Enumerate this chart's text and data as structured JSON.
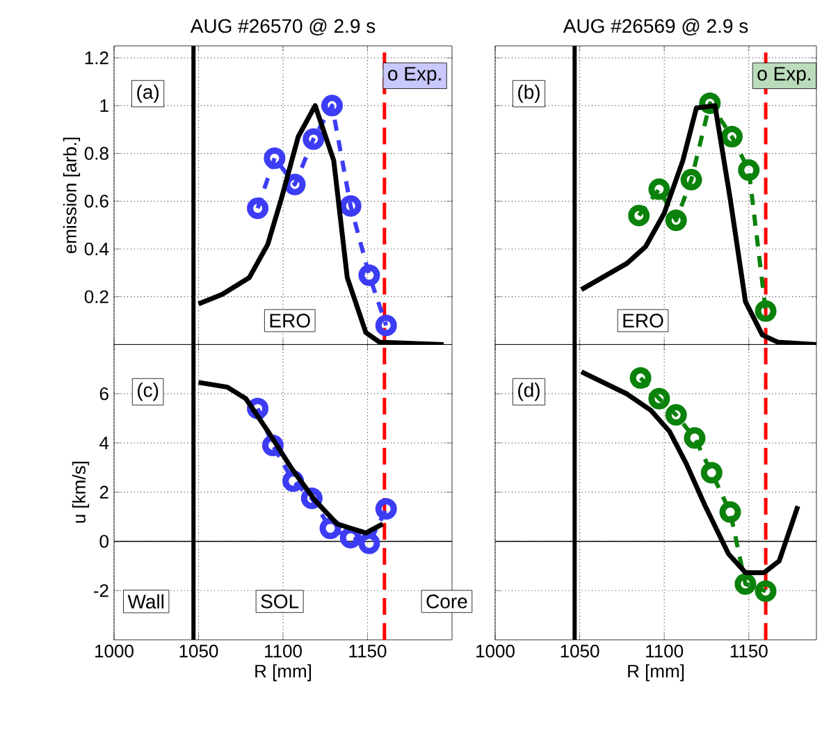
{
  "chart_data": [
    {
      "type": "line",
      "title": "AUG #26570 @ 2.9 s",
      "ylabel": "emission [arb.]",
      "xlim": [
        1000,
        1200
      ],
      "ylim": [
        0,
        1.25
      ],
      "xticks": [
        1000,
        1050,
        1100,
        1150
      ],
      "yticks": [
        0.2,
        0.4,
        0.6,
        0.8,
        1,
        1.2
      ],
      "grid": true,
      "tick_labels": "y",
      "annotations": [
        "(a)",
        "ERO",
        "o Exp."
      ],
      "ref_lines": [
        {
          "axis": "x",
          "value": 1047,
          "color": "#000000",
          "line_style": "solid"
        },
        {
          "axis": "x",
          "value": 1160,
          "color": "#ff0000",
          "line_style": "dashed"
        }
      ],
      "series": [
        {
          "color": "#3c3cf5",
          "marker": "circle",
          "line_style": "dashed",
          "x": [
            1085,
            1095,
            1107,
            1118,
            1129,
            1140,
            1151,
            1161
          ],
          "values": [
            0.57,
            0.78,
            0.67,
            0.86,
            1.0,
            0.58,
            0.29,
            0.08
          ]
        },
        {
          "color": "#000000",
          "marker": "none",
          "line_style": "solid",
          "x": [
            1050,
            1064,
            1080,
            1091,
            1099,
            1109,
            1119,
            1130,
            1138,
            1149,
            1157,
            1195
          ],
          "values": [
            0.17,
            0.21,
            0.28,
            0.42,
            0.61,
            0.87,
            1.0,
            0.77,
            0.28,
            0.05,
            0.01,
            0
          ]
        }
      ]
    },
    {
      "type": "line",
      "title": "AUG #26569 @ 2.9 s",
      "xlim": [
        1000,
        1190
      ],
      "ylim": [
        0,
        1.25
      ],
      "xticks": [
        1000,
        1050,
        1100,
        1150
      ],
      "yticks": [
        0.2,
        0.4,
        0.6,
        0.8,
        1,
        1.2
      ],
      "grid": true,
      "tick_labels": false,
      "annotations": [
        "(b)",
        "ERO",
        "o Exp."
      ],
      "ref_lines": [
        {
          "axis": "x",
          "value": 1047,
          "color": "#000000",
          "line_style": "solid"
        },
        {
          "axis": "x",
          "value": 1160,
          "color": "#ff0000",
          "line_style": "dashed"
        }
      ],
      "series": [
        {
          "color": "#0b820b",
          "marker": "circle",
          "line_style": "dashed",
          "x": [
            1085,
            1097,
            1107,
            1116,
            1127,
            1140,
            1150,
            1160
          ],
          "values": [
            0.54,
            0.65,
            0.52,
            0.69,
            1.01,
            0.87,
            0.73,
            0.14
          ]
        },
        {
          "color": "#000000",
          "marker": "none",
          "line_style": "solid",
          "x": [
            1051,
            1078,
            1089,
            1100,
            1111,
            1119,
            1130,
            1139,
            1148,
            1158,
            1167,
            1190
          ],
          "values": [
            0.23,
            0.34,
            0.41,
            0.55,
            0.77,
            0.99,
            1.0,
            0.61,
            0.18,
            0.04,
            0.01,
            0
          ]
        }
      ]
    },
    {
      "type": "line",
      "xlabel": "R [mm]",
      "ylabel": "u [km/s]",
      "xlim": [
        1000,
        1200
      ],
      "ylim": [
        -4,
        8
      ],
      "xticks": [
        1000,
        1050,
        1100,
        1150
      ],
      "yticks": [
        -2,
        0,
        2,
        4,
        6
      ],
      "grid": true,
      "annotations": [
        "(c)",
        "Wall",
        "SOL",
        "Core"
      ],
      "ref_lines": [
        {
          "axis": "x",
          "value": 1047,
          "color": "#000000",
          "line_style": "solid"
        },
        {
          "axis": "x",
          "value": 1160,
          "color": "#ff0000",
          "line_style": "dashed"
        },
        {
          "axis": "y",
          "value": 0,
          "color": "#000000",
          "line_style": "solid"
        }
      ],
      "series": [
        {
          "color": "#3c3cf5",
          "marker": "circle",
          "line_style": "dashed",
          "x": [
            1085,
            1094,
            1106,
            1117,
            1128,
            1140,
            1151,
            1161
          ],
          "values": [
            5.4,
            3.9,
            2.45,
            1.75,
            0.53,
            0.15,
            -0.08,
            1.32
          ]
        },
        {
          "color": "#000000",
          "marker": "none",
          "line_style": "solid",
          "x": [
            1050,
            1067,
            1078,
            1091,
            1105,
            1119,
            1132,
            1149,
            1159
          ],
          "values": [
            6.46,
            6.27,
            5.8,
            4.48,
            2.97,
            1.66,
            0.71,
            0.34,
            0.71
          ]
        }
      ]
    },
    {
      "type": "line",
      "xlabel": "R [mm]",
      "xlim": [
        1000,
        1190
      ],
      "ylim": [
        -4,
        8
      ],
      "xticks": [
        1000,
        1050,
        1100,
        1150
      ],
      "yticks": [
        -2,
        0,
        2,
        4,
        6
      ],
      "grid": true,
      "tick_labels": "x",
      "annotations": [
        "(d)"
      ],
      "ref_lines": [
        {
          "axis": "x",
          "value": 1047,
          "color": "#000000",
          "line_style": "solid"
        },
        {
          "axis": "x",
          "value": 1160,
          "color": "#ff0000",
          "line_style": "dashed"
        },
        {
          "axis": "y",
          "value": 0,
          "color": "#000000",
          "line_style": "solid"
        }
      ],
      "series": [
        {
          "color": "#0b820b",
          "marker": "circle",
          "line_style": "dashed",
          "x": [
            1086,
            1097,
            1107,
            1118,
            1128,
            1139,
            1148,
            1160
          ],
          "values": [
            6.64,
            5.8,
            5.14,
            4.2,
            2.79,
            1.19,
            -1.73,
            -2.02
          ]
        },
        {
          "color": "#000000",
          "marker": "none",
          "line_style": "solid",
          "x": [
            1051,
            1078,
            1092,
            1103,
            1113,
            1124,
            1138,
            1148,
            1159,
            1168,
            1179
          ],
          "values": [
            6.89,
            5.99,
            5.33,
            4.48,
            3.16,
            1.47,
            -0.51,
            -1.27,
            -1.27,
            -0.79,
            1.43
          ]
        }
      ]
    }
  ]
}
